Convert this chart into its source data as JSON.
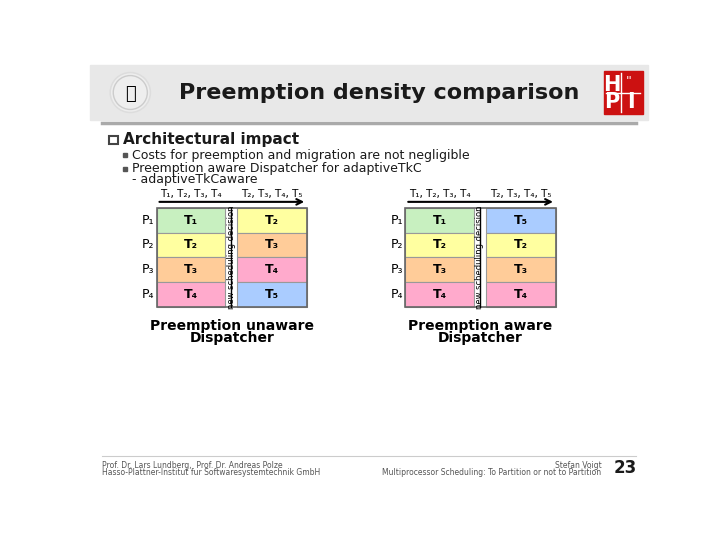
{
  "title": "Preemption density comparison",
  "bg_color": "#ffffff",
  "header_bg": "#e8e8e8",
  "separator_color": "#999999",
  "colors": {
    "green": "#c8f0c0",
    "yellow": "#ffffa0",
    "orange": "#ffcc99",
    "pink": "#ffaacc",
    "blue": "#aaccff"
  },
  "bullet_header": "Architectural impact",
  "bullet1": "Costs for preemption and migration are not negligible",
  "bullet2a": "Preemption aware Dispatcher for adaptiveTkC",
  "bullet2b": "- adaptiveTkCaware",
  "left_diagram": {
    "title_line1": "Preemption unaware",
    "title_line2": "Dispatcher",
    "phase1_header": "T₁, T₂, T₃, T₄",
    "phase2_header": "T₂, T₃, T₄, T₅",
    "rows": [
      {
        "p": "P₁",
        "left_label": "T₁",
        "left_color": "green",
        "right_label": "T₂",
        "right_color": "yellow"
      },
      {
        "p": "P₂",
        "left_label": "T₂",
        "left_color": "yellow",
        "right_label": "T₃",
        "right_color": "orange"
      },
      {
        "p": "P₃",
        "left_label": "T₃",
        "left_color": "orange",
        "right_label": "T₄",
        "right_color": "pink"
      },
      {
        "p": "P₄",
        "left_label": "T₄",
        "left_color": "pink",
        "right_label": "T₅",
        "right_color": "blue"
      }
    ]
  },
  "right_diagram": {
    "title_line1": "Preemption aware",
    "title_line2": "Dispatcher",
    "phase1_header": "T₁, T₂, T₃, T₄",
    "phase2_header": "T₂, T₃, T₄, T₅",
    "rows": [
      {
        "p": "P₁",
        "left_label": "T₁",
        "left_color": "green",
        "right_label": "T₅",
        "right_color": "blue"
      },
      {
        "p": "P₂",
        "left_label": "T₂",
        "left_color": "yellow",
        "right_label": "T₂",
        "right_color": "yellow"
      },
      {
        "p": "P₃",
        "left_label": "T₃",
        "left_color": "orange",
        "right_label": "T₃",
        "right_color": "orange"
      },
      {
        "p": "P₄",
        "left_label": "T₄",
        "left_color": "pink",
        "right_label": "T₄",
        "right_color": "pink"
      }
    ]
  },
  "footer_left1": "Prof. Dr. Lars Lundberg,  Prof. Dr. Andreas Polze",
  "footer_left2": "Hasso-Plattner-Institut fur Softwaresystemtechnik GmbH",
  "footer_right1": "Stefan Voigt",
  "footer_right2": "Multiprocessor Scheduling: To Partition or not to Partition",
  "page_number": "23"
}
